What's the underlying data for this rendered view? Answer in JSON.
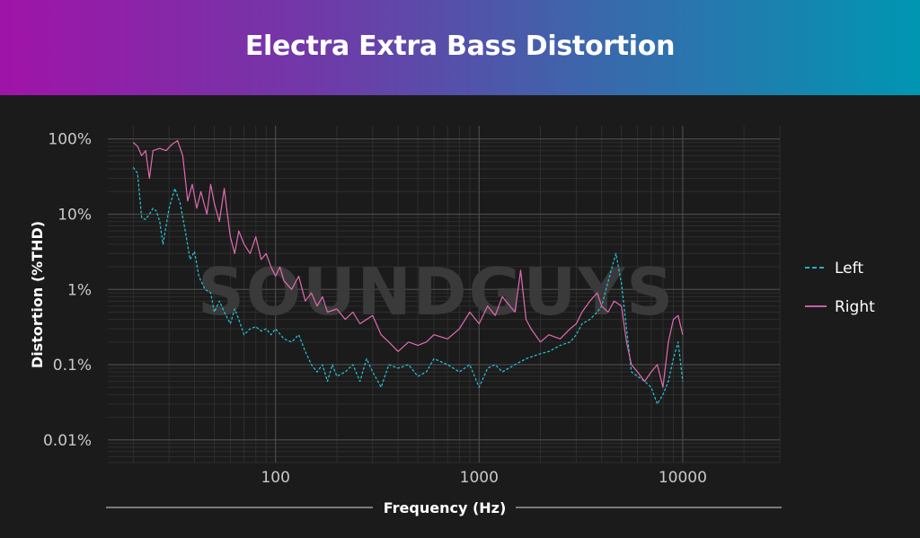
{
  "chart_data": {
    "type": "line",
    "title": "Electra Extra Bass Distortion",
    "xlabel": "Frequency (Hz)",
    "ylabel": "Distortion (%THD)",
    "xscale": "log",
    "yscale": "log",
    "xlim": [
      15,
      30000
    ],
    "ylim": [
      0.005,
      150
    ],
    "x_ticks": [
      100,
      1000,
      10000
    ],
    "x_tick_labels": [
      "100",
      "1000",
      "10000"
    ],
    "y_ticks": [
      0.01,
      0.1,
      1,
      10,
      100
    ],
    "y_tick_labels": [
      "0.01%",
      "0.1%",
      "1%",
      "10%",
      "100%"
    ],
    "grid": true,
    "legend_position": "right",
    "watermark": "SOUNDGUYS",
    "series": [
      {
        "name": "Left",
        "color": "#26c6da",
        "dash": "dashed",
        "points": [
          [
            20,
            42
          ],
          [
            21,
            35
          ],
          [
            22,
            9
          ],
          [
            23,
            8.5
          ],
          [
            24,
            10
          ],
          [
            25,
            12
          ],
          [
            26,
            11
          ],
          [
            27,
            8
          ],
          [
            28,
            4
          ],
          [
            29,
            7
          ],
          [
            30,
            12
          ],
          [
            32,
            22
          ],
          [
            34,
            14
          ],
          [
            36,
            6
          ],
          [
            38,
            2.5
          ],
          [
            40,
            3.2
          ],
          [
            42,
            1.5
          ],
          [
            45,
            1.0
          ],
          [
            48,
            0.9
          ],
          [
            50,
            0.5
          ],
          [
            53,
            0.7
          ],
          [
            56,
            0.5
          ],
          [
            60,
            0.35
          ],
          [
            63,
            0.55
          ],
          [
            66,
            0.4
          ],
          [
            70,
            0.25
          ],
          [
            75,
            0.3
          ],
          [
            80,
            0.32
          ],
          [
            85,
            0.28
          ],
          [
            90,
            0.3
          ],
          [
            95,
            0.25
          ],
          [
            100,
            0.3
          ],
          [
            110,
            0.22
          ],
          [
            120,
            0.2
          ],
          [
            130,
            0.25
          ],
          [
            140,
            0.15
          ],
          [
            150,
            0.1
          ],
          [
            160,
            0.08
          ],
          [
            170,
            0.1
          ],
          [
            180,
            0.06
          ],
          [
            190,
            0.1
          ],
          [
            200,
            0.07
          ],
          [
            220,
            0.08
          ],
          [
            240,
            0.1
          ],
          [
            260,
            0.06
          ],
          [
            280,
            0.12
          ],
          [
            300,
            0.08
          ],
          [
            330,
            0.05
          ],
          [
            360,
            0.1
          ],
          [
            400,
            0.09
          ],
          [
            450,
            0.1
          ],
          [
            500,
            0.07
          ],
          [
            550,
            0.08
          ],
          [
            600,
            0.12
          ],
          [
            700,
            0.1
          ],
          [
            800,
            0.08
          ],
          [
            900,
            0.1
          ],
          [
            1000,
            0.05
          ],
          [
            1100,
            0.09
          ],
          [
            1200,
            0.1
          ],
          [
            1300,
            0.08
          ],
          [
            1500,
            0.1
          ],
          [
            1700,
            0.12
          ],
          [
            2000,
            0.14
          ],
          [
            2200,
            0.15
          ],
          [
            2500,
            0.18
          ],
          [
            2800,
            0.2
          ],
          [
            3000,
            0.25
          ],
          [
            3200,
            0.35
          ],
          [
            3500,
            0.4
          ],
          [
            3800,
            0.5
          ],
          [
            4000,
            0.6
          ],
          [
            4200,
            1.0
          ],
          [
            4500,
            2.0
          ],
          [
            4700,
            3.0
          ],
          [
            5000,
            1.2
          ],
          [
            5300,
            0.3
          ],
          [
            5600,
            0.08
          ],
          [
            6000,
            0.07
          ],
          [
            6500,
            0.06
          ],
          [
            7000,
            0.05
          ],
          [
            7500,
            0.03
          ],
          [
            8000,
            0.04
          ],
          [
            8500,
            0.06
          ],
          [
            9000,
            0.12
          ],
          [
            9500,
            0.2
          ],
          [
            10000,
            0.06
          ]
        ]
      },
      {
        "name": "Right",
        "color": "#e06bb0",
        "dash": "solid",
        "points": [
          [
            20,
            90
          ],
          [
            21,
            80
          ],
          [
            22,
            60
          ],
          [
            23,
            70
          ],
          [
            24,
            30
          ],
          [
            25,
            70
          ],
          [
            27,
            75
          ],
          [
            29,
            70
          ],
          [
            31,
            85
          ],
          [
            33,
            95
          ],
          [
            35,
            60
          ],
          [
            37,
            15
          ],
          [
            39,
            25
          ],
          [
            41,
            12
          ],
          [
            43,
            20
          ],
          [
            46,
            10
          ],
          [
            48,
            25
          ],
          [
            50,
            14
          ],
          [
            53,
            8
          ],
          [
            56,
            22
          ],
          [
            58,
            10
          ],
          [
            60,
            5
          ],
          [
            63,
            3
          ],
          [
            66,
            6
          ],
          [
            70,
            4
          ],
          [
            75,
            3
          ],
          [
            80,
            5
          ],
          [
            85,
            2.5
          ],
          [
            90,
            3
          ],
          [
            95,
            2
          ],
          [
            100,
            1.5
          ],
          [
            105,
            2
          ],
          [
            110,
            1.3
          ],
          [
            120,
            1.0
          ],
          [
            130,
            1.5
          ],
          [
            140,
            0.7
          ],
          [
            150,
            0.9
          ],
          [
            160,
            0.6
          ],
          [
            170,
            0.8
          ],
          [
            180,
            0.5
          ],
          [
            200,
            0.55
          ],
          [
            220,
            0.4
          ],
          [
            240,
            0.5
          ],
          [
            260,
            0.35
          ],
          [
            280,
            0.4
          ],
          [
            300,
            0.45
          ],
          [
            330,
            0.25
          ],
          [
            360,
            0.2
          ],
          [
            400,
            0.15
          ],
          [
            450,
            0.2
          ],
          [
            500,
            0.18
          ],
          [
            550,
            0.2
          ],
          [
            600,
            0.25
          ],
          [
            700,
            0.22
          ],
          [
            800,
            0.3
          ],
          [
            900,
            0.5
          ],
          [
            1000,
            0.35
          ],
          [
            1100,
            0.6
          ],
          [
            1200,
            0.45
          ],
          [
            1300,
            0.8
          ],
          [
            1500,
            0.5
          ],
          [
            1600,
            1.8
          ],
          [
            1700,
            0.4
          ],
          [
            1800,
            0.3
          ],
          [
            2000,
            0.2
          ],
          [
            2200,
            0.25
          ],
          [
            2500,
            0.22
          ],
          [
            2800,
            0.3
          ],
          [
            3000,
            0.35
          ],
          [
            3200,
            0.5
          ],
          [
            3500,
            0.7
          ],
          [
            3800,
            0.9
          ],
          [
            4000,
            0.6
          ],
          [
            4300,
            0.5
          ],
          [
            4600,
            0.7
          ],
          [
            5000,
            0.6
          ],
          [
            5300,
            0.2
          ],
          [
            5600,
            0.1
          ],
          [
            6000,
            0.08
          ],
          [
            6500,
            0.06
          ],
          [
            7000,
            0.08
          ],
          [
            7500,
            0.1
          ],
          [
            8000,
            0.05
          ],
          [
            8500,
            0.2
          ],
          [
            9000,
            0.4
          ],
          [
            9500,
            0.45
          ],
          [
            10000,
            0.25
          ]
        ]
      }
    ]
  }
}
